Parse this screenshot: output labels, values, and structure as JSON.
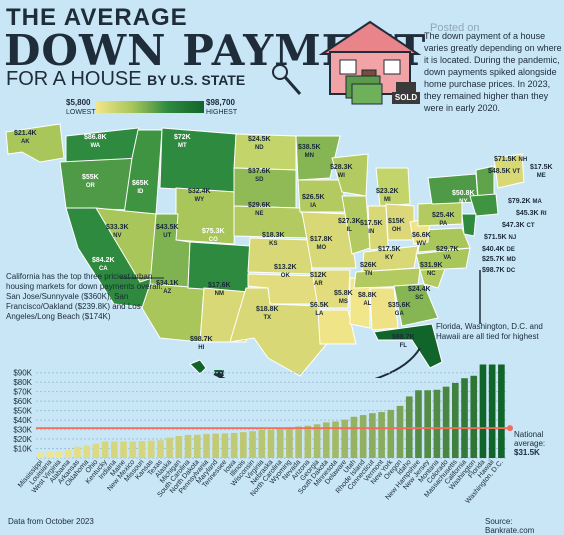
{
  "title": {
    "line1": "THE AVERAGE",
    "line2": "DOWN PAYMENT",
    "line3": "FOR A HOUSE",
    "line3b": "BY U.S. STATE"
  },
  "posted": "Posted on",
  "blurb": "The down payment of a house varies greatly depending on where it is located. During the pandemic, down payments spiked alongside home purchase prices. In 2023, they remained higher than they were in early 2020.",
  "sold_sign": "SOLD",
  "legend": {
    "low_value": "$5,800",
    "low_label": "LOWEST",
    "high_value": "$98,700",
    "high_label": "HIGHEST",
    "colors": [
      "#f2e68a",
      "#12652a"
    ]
  },
  "callout": "California has the top three priciest urban housing markets for down payments overall: San Jose/Sunnyvale ($360K), San Francisco/Oakland ($239.8K) and Los Angeles/Long Beach ($174K)",
  "note": "Florida, Washington, D.C. and Hawaii are all tied for highest",
  "states": [
    {
      "abbr": "AK",
      "value": "$21.4K"
    },
    {
      "abbr": "WA",
      "value": "$86.8K"
    },
    {
      "abbr": "OR",
      "value": "$55K"
    },
    {
      "abbr": "CA",
      "value": "$84.2K"
    },
    {
      "abbr": "ID",
      "value": "$65K"
    },
    {
      "abbr": "NV",
      "value": "$33.3K"
    },
    {
      "abbr": "MT",
      "value": "$72K"
    },
    {
      "abbr": "WY",
      "value": "$32.4K"
    },
    {
      "abbr": "UT",
      "value": "$43.5K"
    },
    {
      "abbr": "AZ",
      "value": "$34.1K"
    },
    {
      "abbr": "CO",
      "value": "$75.3K"
    },
    {
      "abbr": "NM",
      "value": "$17.6K"
    },
    {
      "abbr": "ND",
      "value": "$24.5K"
    },
    {
      "abbr": "SD",
      "value": "$37.6K"
    },
    {
      "abbr": "NE",
      "value": "$29.6K"
    },
    {
      "abbr": "KS",
      "value": "$18.3K"
    },
    {
      "abbr": "OK",
      "value": "$13.2K"
    },
    {
      "abbr": "TX",
      "value": "$18.8K"
    },
    {
      "abbr": "MN",
      "value": "$38.5K"
    },
    {
      "abbr": "IA",
      "value": "$26.5K"
    },
    {
      "abbr": "MO",
      "value": "$17.8K"
    },
    {
      "abbr": "AR",
      "value": "$12K"
    },
    {
      "abbr": "LA",
      "value": "$6.5K"
    },
    {
      "abbr": "WI",
      "value": "$28.3K"
    },
    {
      "abbr": "IL",
      "value": "$27.3K"
    },
    {
      "abbr": "MS",
      "value": "$5.8K"
    },
    {
      "abbr": "MI",
      "value": "$23.2K"
    },
    {
      "abbr": "IN",
      "value": "$17.5K"
    },
    {
      "abbr": "OH",
      "value": "$15K"
    },
    {
      "abbr": "KY",
      "value": "$17.5K"
    },
    {
      "abbr": "TN",
      "value": "$26K"
    },
    {
      "abbr": "AL",
      "value": "$8.8K"
    },
    {
      "abbr": "GA",
      "value": "$35.6K"
    },
    {
      "abbr": "FL",
      "value": "$98.7K"
    },
    {
      "abbr": "SC",
      "value": "$24.4K"
    },
    {
      "abbr": "NC",
      "value": "$31.9K"
    },
    {
      "abbr": "VA",
      "value": "$29.7K"
    },
    {
      "abbr": "WV",
      "value": "$6.6K"
    },
    {
      "abbr": "PA",
      "value": "$25.4K"
    },
    {
      "abbr": "NY",
      "value": "$50.8K"
    },
    {
      "abbr": "ME",
      "value": "$17.5K"
    },
    {
      "abbr": "HI",
      "value": "$98.7K"
    }
  ],
  "east_labels": [
    {
      "value": "$71.5K",
      "abbr": "NH"
    },
    {
      "value": "$48.5K",
      "abbr": "VT"
    },
    {
      "value": "$79.2K",
      "abbr": "MA"
    },
    {
      "value": "$45.3K",
      "abbr": "RI"
    },
    {
      "value": "$47.3K",
      "abbr": "CT"
    },
    {
      "value": "$71.5K",
      "abbr": "NJ"
    },
    {
      "value": "$40.4K",
      "abbr": "DE"
    },
    {
      "value": "$25.7K",
      "abbr": "MD"
    },
    {
      "value": "$98.7K",
      "abbr": "DC"
    }
  ],
  "chart_data": {
    "type": "bar",
    "categories": [
      "Mississippi",
      "Louisiana",
      "West Virginia",
      "Alabama",
      "Arkansas",
      "Oklahoma",
      "Ohio",
      "Kentucky",
      "Indiana",
      "Maine",
      "New Mexico",
      "Missouri",
      "Kansas",
      "Texas",
      "Alaska",
      "Michigan",
      "South Carolina",
      "North Dakota",
      "Pennsylvania",
      "Maryland",
      "Tennessee",
      "Iowa",
      "Illinois",
      "Wisconsin",
      "Virginia",
      "Nebraska",
      "North Carolina",
      "Wyoming",
      "Nevada",
      "Arizona",
      "Georgia",
      "South Dakota",
      "Minnesota",
      "Delaware",
      "Utah",
      "Rhode Island",
      "Connecticut",
      "Vermont",
      "New York",
      "Oregon",
      "Idaho",
      "New Hampshire",
      "New Jersey",
      "Montana",
      "Colorado",
      "Massachusetts",
      "California",
      "Washington",
      "Florida",
      "Hawaii",
      "Washington, D.C."
    ],
    "values": [
      5.8,
      6.5,
      6.6,
      8.8,
      12,
      13.2,
      15,
      17.5,
      17.5,
      17.5,
      17.6,
      17.8,
      18.3,
      18.8,
      21.4,
      23.2,
      24.4,
      24.5,
      25.4,
      25.7,
      26,
      26.5,
      27.3,
      28.3,
      29.7,
      29.6,
      31.9,
      32.4,
      33.3,
      34.1,
      35.6,
      37.6,
      38.5,
      40.4,
      43.5,
      45.3,
      47.3,
      48.5,
      50.8,
      55,
      65,
      71.5,
      71.5,
      72,
      75.3,
      79.2,
      84.2,
      86.8,
      98.7,
      98.7,
      98.7
    ],
    "ylim": [
      0,
      95
    ],
    "yticks": [
      "$0K",
      "$10K",
      "$20K",
      "$30K",
      "$40K",
      "$50K",
      "$60K",
      "$70K",
      "$80K",
      "$90K"
    ],
    "average": 31.5,
    "average_label": "National average:",
    "average_value": "$31.5K",
    "grid": true
  },
  "source_left": "Data from October 2023",
  "source_right": "Source: Bankrate.com"
}
